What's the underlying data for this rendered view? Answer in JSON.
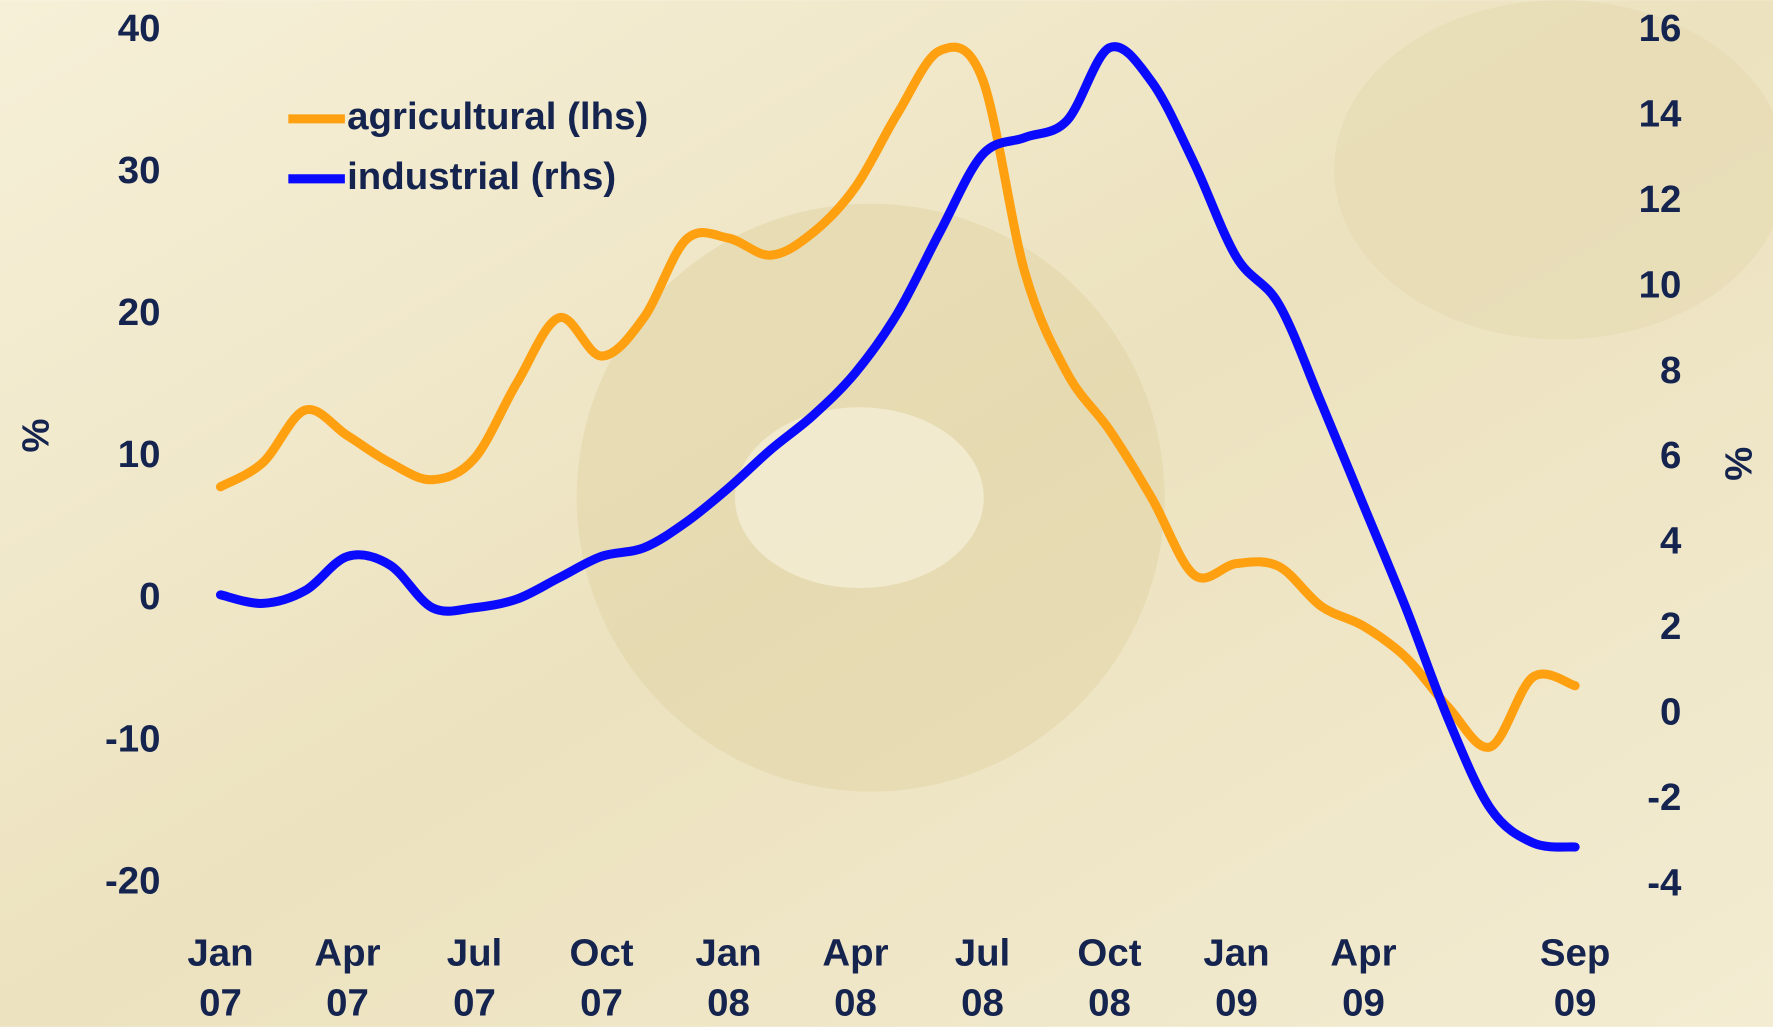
{
  "chart_data": {
    "type": "line",
    "ylabel": "%",
    "y2label": "%",
    "categories": [
      "Jan 07",
      null,
      null,
      "Apr 07",
      null,
      null,
      "Jul 07",
      null,
      null,
      "Oct 07",
      null,
      null,
      "Jan 08",
      null,
      null,
      "Apr 08",
      null,
      null,
      "Jul 08",
      null,
      null,
      "Oct 08",
      null,
      null,
      "Jan 09",
      null,
      null,
      "Apr 09",
      null,
      null,
      null,
      null,
      "Sep 09"
    ],
    "ylim": [
      -20,
      40
    ],
    "yticks": [
      -20,
      -10,
      0,
      10,
      20,
      30,
      40
    ],
    "y2lim": [
      -4,
      16
    ],
    "y2ticks": [
      -4,
      -2,
      0,
      2,
      4,
      6,
      8,
      10,
      12,
      14,
      16
    ],
    "legend": "upper left",
    "series": [
      {
        "name": "agricultural (lhs)",
        "color": "#ffa010",
        "values": [
          7.9,
          9.6,
          13.3,
          11.5,
          9.6,
          8.4,
          9.9,
          15.2,
          19.8,
          17.1,
          19.8,
          25.3,
          25.4,
          24.2,
          25.8,
          29,
          34.2,
          38.6,
          36.6,
          23,
          15.9,
          11.9,
          7.1,
          1.7,
          2.5,
          2.3,
          -0.5,
          -1.9,
          -4.1,
          -7.6,
          -10.4,
          -5.5,
          -6.1
        ]
      },
      {
        "name": "industrial (rhs)",
        "color": "#0a0aff",
        "axis": "y2",
        "values": [
          2.8,
          2.6,
          2.9,
          3.7,
          3.5,
          2.5,
          2.5,
          2.7,
          3.2,
          3.7,
          3.9,
          4.5,
          5.3,
          6.2,
          7.0,
          8.0,
          9.4,
          11.3,
          13.1,
          13.5,
          13.9,
          15.6,
          14.8,
          12.9,
          10.7,
          9.6,
          7.3,
          4.9,
          2.5,
          -0.1,
          -2.2,
          -3.0,
          -3.1
        ]
      }
    ]
  }
}
